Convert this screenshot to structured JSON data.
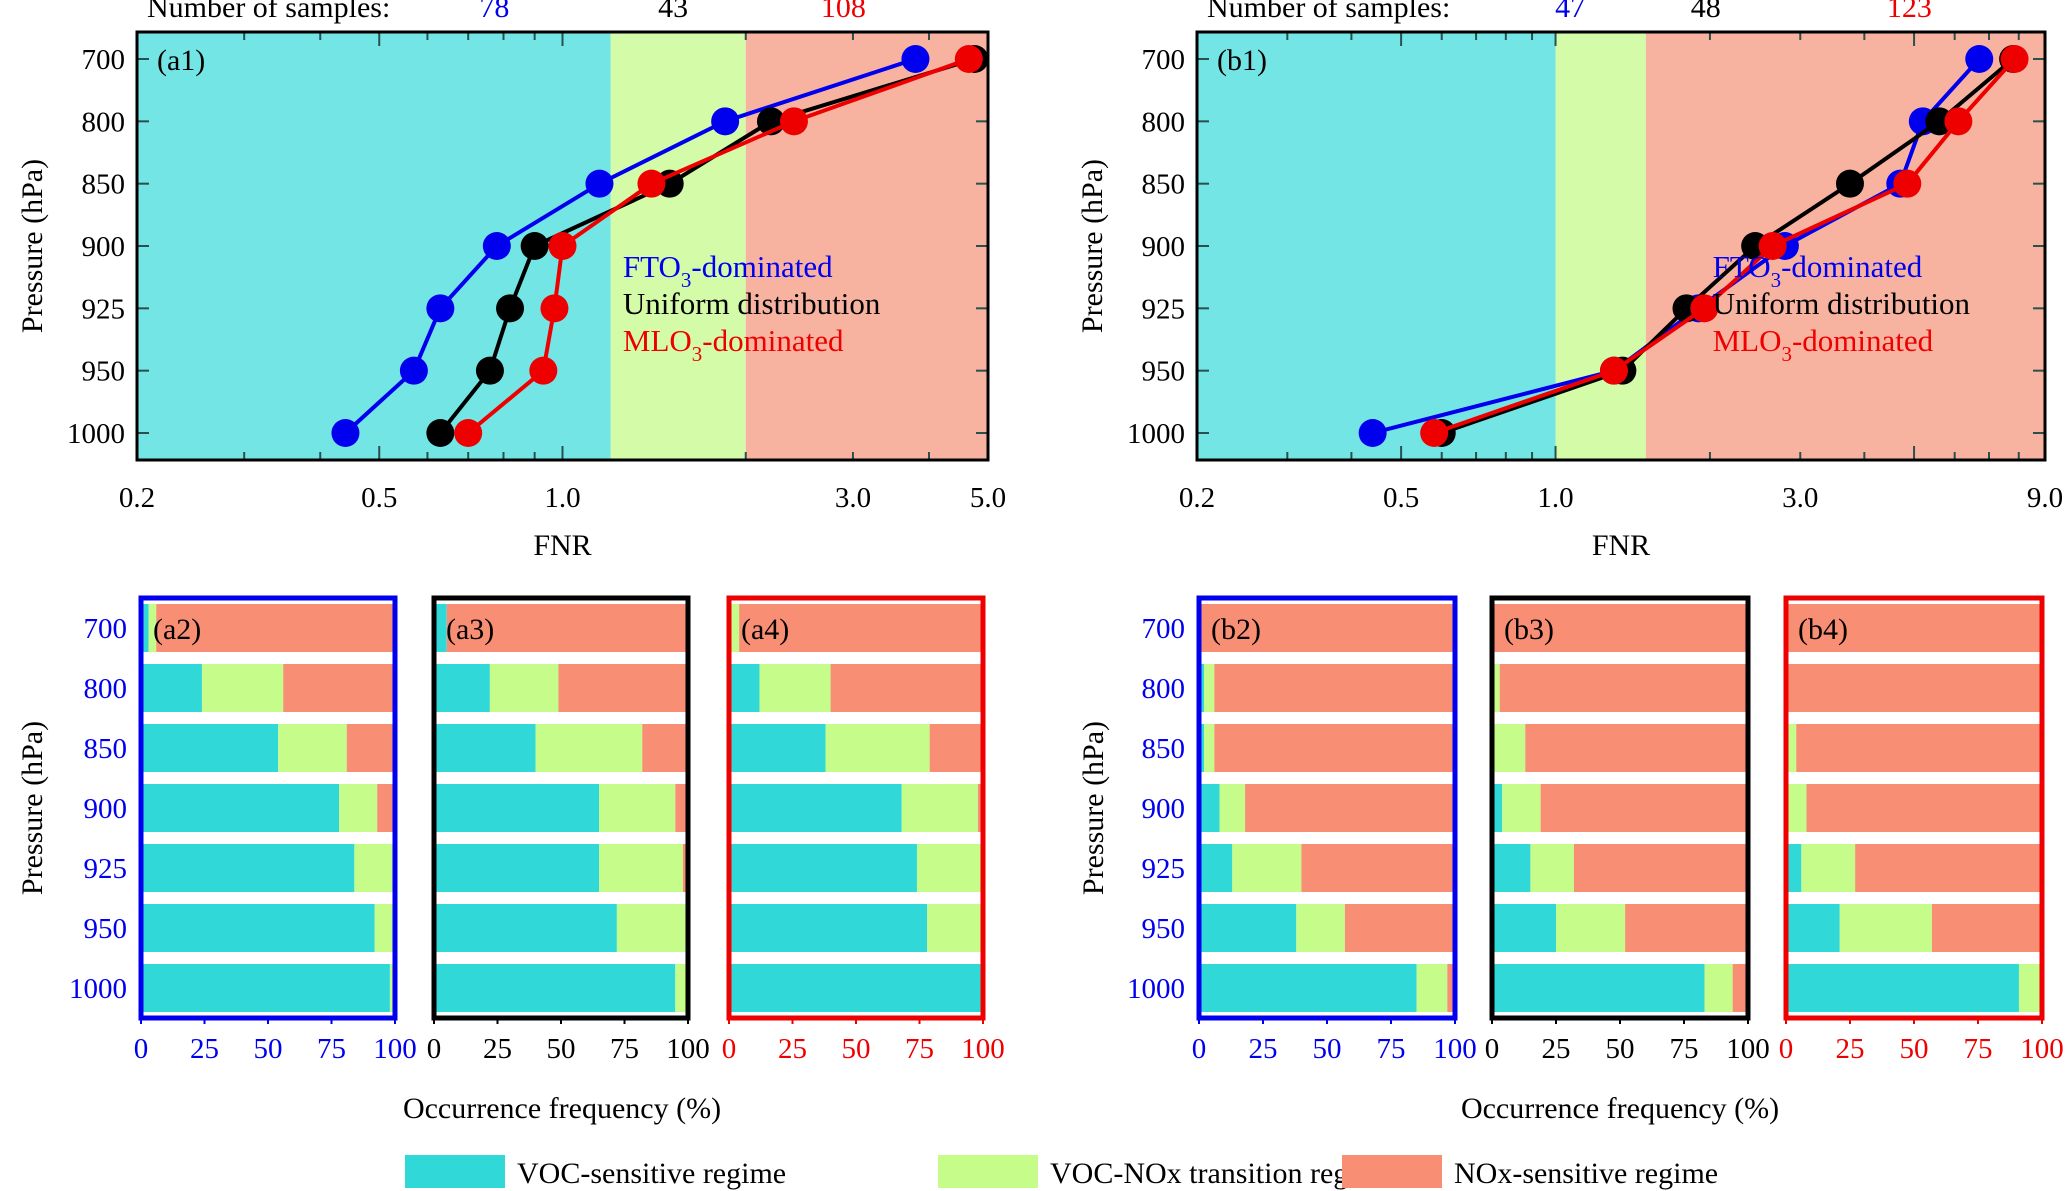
{
  "figure": {
    "samples_label": "Number of samples:",
    "fnr_label": "FNR",
    "pressure_label": "Pressure (hPa)",
    "occurrence_label": "Occurrence frequency (%)"
  },
  "colors": {
    "fto3": "#0000ee",
    "uniform": "#000000",
    "mlo3": "#ee0000",
    "voc_bg": "#74e5e5",
    "trans_bg": "#d3fba8",
    "nox_bg": "#f8b3a0",
    "voc_bar": "#30d8d8",
    "trans_bar": "#c6fc8a",
    "nox_bar": "#f88e74"
  },
  "chart_data": [
    {
      "id": "a1",
      "panel_label": "(a1)",
      "type": "line",
      "x_scale": "log",
      "xlabel": "FNR",
      "ylabel": "Pressure (hPa)",
      "xlim": [
        0.2,
        5.0
      ],
      "x_tick_labels": [
        "0.2",
        "0.5",
        "1.0",
        "3.0",
        "5.0"
      ],
      "x_tick_values": [
        0.2,
        0.5,
        1.0,
        3.0,
        5.0
      ],
      "levels": [
        "700",
        "800",
        "850",
        "900",
        "925",
        "950",
        "1000"
      ],
      "regime_bounds": [
        1.2,
        2.0
      ],
      "sample_counts": [
        "78",
        "43",
        "108"
      ],
      "series": [
        {
          "name": "FTO3-dominated",
          "color": "#0000ee",
          "values": [
            3.8,
            1.85,
            1.15,
            0.78,
            0.63,
            0.57,
            0.44
          ]
        },
        {
          "name": "Uniform distribution",
          "color": "#000000",
          "values": [
            4.75,
            2.2,
            1.5,
            0.9,
            0.82,
            0.76,
            0.63
          ]
        },
        {
          "name": "MLO3-dominated",
          "color": "#ee0000",
          "values": [
            4.65,
            2.4,
            1.4,
            1.0,
            0.97,
            0.93,
            0.7
          ]
        }
      ],
      "legend": [
        {
          "name": "FTO",
          "sub": "3",
          "suffix": "-dominated",
          "color": "#0000ee"
        },
        {
          "name": "Uniform distribution",
          "sub": "",
          "suffix": "",
          "color": "#000000"
        },
        {
          "name": "MLO",
          "sub": "3",
          "suffix": "-dominated",
          "color": "#ee0000"
        }
      ]
    },
    {
      "id": "b1",
      "panel_label": "(b1)",
      "type": "line",
      "x_scale": "log",
      "xlabel": "FNR",
      "ylabel": "Pressure (hPa)",
      "xlim": [
        0.2,
        9.0
      ],
      "x_tick_labels": [
        "0.2",
        "0.5",
        "1.0",
        "3.0",
        "9.0"
      ],
      "x_tick_values": [
        0.2,
        0.5,
        1.0,
        3.0,
        9.0
      ],
      "levels": [
        "700",
        "800",
        "850",
        "900",
        "925",
        "950",
        "1000"
      ],
      "regime_bounds": [
        1.0,
        1.5
      ],
      "sample_counts": [
        "47",
        "48",
        "123"
      ],
      "series": [
        {
          "name": "FTO3-dominated",
          "color": "#0000ee",
          "values": [
            6.7,
            5.2,
            4.7,
            2.8,
            1.9,
            1.3,
            0.44
          ]
        },
        {
          "name": "Uniform distribution",
          "color": "#000000",
          "values": [
            7.8,
            5.6,
            3.75,
            2.45,
            1.8,
            1.35,
            0.6
          ]
        },
        {
          "name": "MLO3-dominated",
          "color": "#ee0000",
          "values": [
            7.85,
            6.1,
            4.85,
            2.65,
            1.95,
            1.3,
            0.58
          ]
        }
      ],
      "legend": [
        {
          "name": "FTO",
          "sub": "3",
          "suffix": "-dominated",
          "color": "#0000ee"
        },
        {
          "name": "Uniform distribution",
          "sub": "",
          "suffix": "",
          "color": "#000000"
        },
        {
          "name": "MLO",
          "sub": "3",
          "suffix": "-dominated",
          "color": "#ee0000"
        }
      ]
    },
    {
      "id": "a2",
      "panel_label": "(a2)",
      "type": "bar",
      "stacked": true,
      "orientation": "horizontal",
      "frame_color": "#0000ee",
      "tick_color": "#0000ee",
      "levels": [
        "700",
        "800",
        "850",
        "900",
        "925",
        "950",
        "1000"
      ],
      "xlim": [
        0,
        100
      ],
      "x_tick_labels": [
        "0",
        "25",
        "50",
        "75",
        "100"
      ],
      "series": [
        {
          "name": "VOC-sensitive regime",
          "values": [
            3,
            24,
            54,
            78,
            84,
            92,
            98
          ]
        },
        {
          "name": "VOC-NOx transition regime",
          "values": [
            3,
            32,
            27,
            15,
            15,
            8,
            2
          ]
        },
        {
          "name": "NOx-sensitive regime",
          "values": [
            94,
            44,
            19,
            7,
            1,
            0,
            0
          ]
        }
      ]
    },
    {
      "id": "a3",
      "panel_label": "(a3)",
      "type": "bar",
      "stacked": true,
      "orientation": "horizontal",
      "frame_color": "#000000",
      "tick_color": "#000000",
      "levels": [
        "700",
        "800",
        "850",
        "900",
        "925",
        "950",
        "1000"
      ],
      "xlim": [
        0,
        100
      ],
      "x_tick_labels": [
        "0",
        "25",
        "50",
        "75",
        "100"
      ],
      "series": [
        {
          "name": "VOC-sensitive regime",
          "values": [
            5,
            22,
            40,
            65,
            65,
            72,
            95
          ]
        },
        {
          "name": "VOC-NOx transition regime",
          "values": [
            0,
            27,
            42,
            30,
            33,
            28,
            5
          ]
        },
        {
          "name": "NOx-sensitive regime",
          "values": [
            95,
            51,
            18,
            5,
            2,
            0,
            0
          ]
        }
      ]
    },
    {
      "id": "a4",
      "panel_label": "(a4)",
      "type": "bar",
      "stacked": true,
      "orientation": "horizontal",
      "frame_color": "#ee0000",
      "tick_color": "#ee0000",
      "levels": [
        "700",
        "800",
        "850",
        "900",
        "925",
        "950",
        "1000"
      ],
      "xlim": [
        0,
        100
      ],
      "x_tick_labels": [
        "0",
        "25",
        "50",
        "75",
        "100"
      ],
      "series": [
        {
          "name": "VOC-sensitive regime",
          "values": [
            0,
            12,
            38,
            68,
            74,
            78,
            99
          ]
        },
        {
          "name": "VOC-NOx transition regime",
          "values": [
            4,
            28,
            41,
            30,
            26,
            22,
            1
          ]
        },
        {
          "name": "NOx-sensitive regime",
          "values": [
            96,
            60,
            21,
            2,
            0,
            0,
            0
          ]
        }
      ]
    },
    {
      "id": "b2",
      "panel_label": "(b2)",
      "type": "bar",
      "stacked": true,
      "orientation": "horizontal",
      "frame_color": "#0000ee",
      "tick_color": "#0000ee",
      "levels": [
        "700",
        "800",
        "850",
        "900",
        "925",
        "950",
        "1000"
      ],
      "xlim": [
        0,
        100
      ],
      "x_tick_labels": [
        "0",
        "25",
        "50",
        "75",
        "100"
      ],
      "series": [
        {
          "name": "VOC-sensitive regime",
          "values": [
            0,
            2,
            2,
            8,
            13,
            38,
            85
          ]
        },
        {
          "name": "VOC-NOx transition regime",
          "values": [
            0,
            4,
            4,
            10,
            27,
            19,
            12
          ]
        },
        {
          "name": "NOx-sensitive regime",
          "values": [
            100,
            94,
            94,
            82,
            60,
            43,
            3
          ]
        }
      ]
    },
    {
      "id": "b3",
      "panel_label": "(b3)",
      "type": "bar",
      "stacked": true,
      "orientation": "horizontal",
      "frame_color": "#000000",
      "tick_color": "#000000",
      "levels": [
        "700",
        "800",
        "850",
        "900",
        "925",
        "950",
        "1000"
      ],
      "xlim": [
        0,
        100
      ],
      "x_tick_labels": [
        "0",
        "25",
        "50",
        "75",
        "100"
      ],
      "series": [
        {
          "name": "VOC-sensitive regime",
          "values": [
            0,
            0,
            0,
            4,
            15,
            25,
            83
          ]
        },
        {
          "name": "VOC-NOx transition regime",
          "values": [
            0,
            3,
            13,
            15,
            17,
            27,
            11
          ]
        },
        {
          "name": "NOx-sensitive regime",
          "values": [
            100,
            97,
            87,
            81,
            68,
            48,
            6
          ]
        }
      ]
    },
    {
      "id": "b4",
      "panel_label": "(b4)",
      "type": "bar",
      "stacked": true,
      "orientation": "horizontal",
      "frame_color": "#ee0000",
      "tick_color": "#ee0000",
      "levels": [
        "700",
        "800",
        "850",
        "900",
        "925",
        "950",
        "1000"
      ],
      "xlim": [
        0,
        100
      ],
      "x_tick_labels": [
        "0",
        "25",
        "50",
        "75",
        "100"
      ],
      "series": [
        {
          "name": "VOC-sensitive regime",
          "values": [
            0,
            0,
            0,
            0,
            6,
            21,
            91
          ]
        },
        {
          "name": "VOC-NOx transition regime",
          "values": [
            0,
            0,
            4,
            8,
            21,
            36,
            8
          ]
        },
        {
          "name": "NOx-sensitive regime",
          "values": [
            100,
            100,
            96,
            92,
            73,
            43,
            1
          ]
        }
      ]
    }
  ],
  "regime_legend": [
    {
      "label": "VOC-sensitive regime",
      "color": "#30d8d8"
    },
    {
      "label": "VOC-NOx transition regime",
      "color": "#c6fc8a"
    },
    {
      "label": "NOx-sensitive regime",
      "color": "#f88e74"
    }
  ]
}
